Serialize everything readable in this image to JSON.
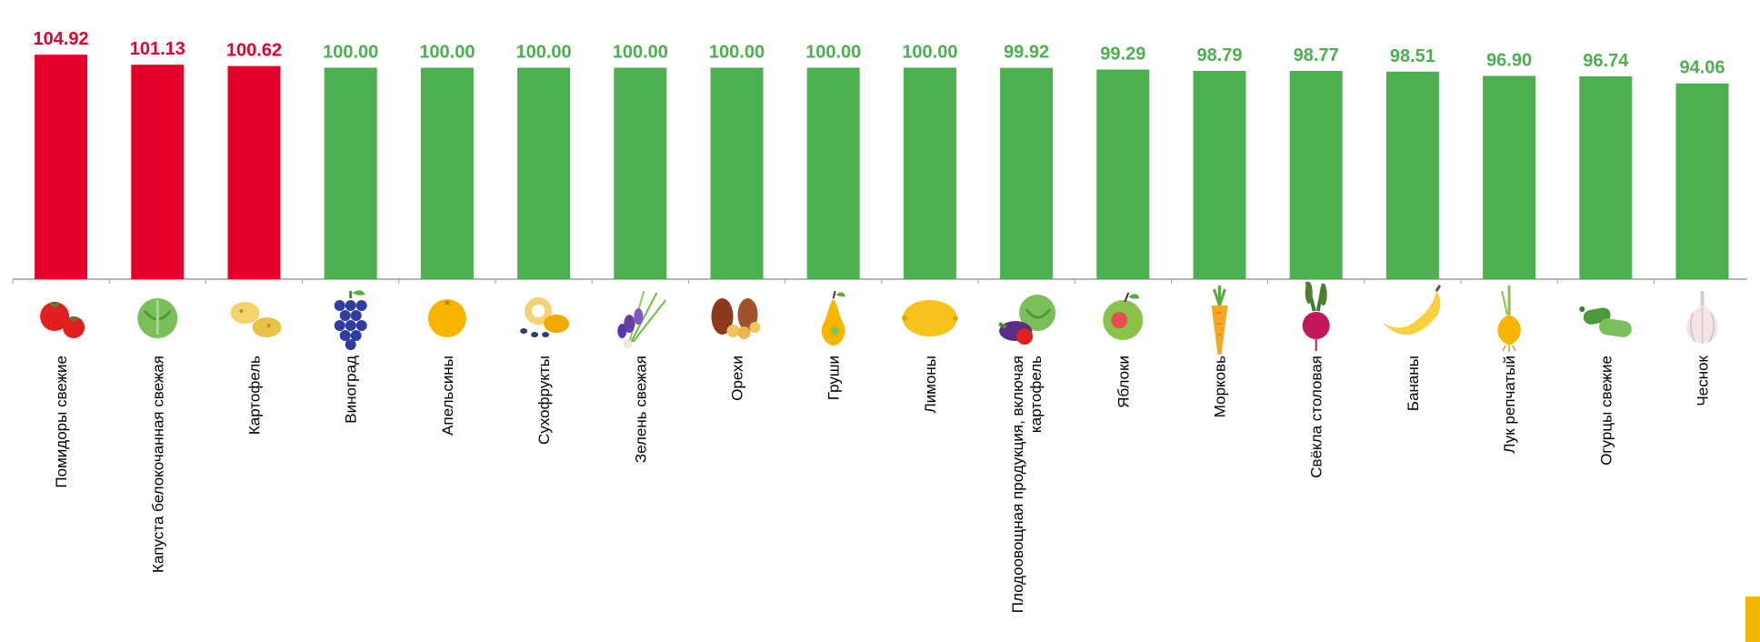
{
  "chart_data": {
    "type": "bar",
    "categories": [
      "Помидоры свежие",
      "Капуста белокочанная свежая",
      "Картофель",
      "Виноград",
      "Апельсины",
      "Сухофрукты",
      "Зелень свежая",
      "Орехи",
      "Груши",
      "Лимоны",
      "Плодоовощная продукция, включая картофель",
      "Яблоки",
      "Морковь",
      "Свёкла столовая",
      "Бананы",
      "Лук репчатый",
      "Огурцы свежие",
      "Чеснок"
    ],
    "values": [
      104.92,
      101.13,
      100.62,
      100.0,
      100.0,
      100.0,
      100.0,
      100.0,
      100.0,
      100.0,
      99.92,
      99.29,
      98.79,
      98.77,
      98.51,
      96.9,
      96.74,
      94.06
    ],
    "data_labels": [
      "104.92",
      "101.13",
      "100.62",
      "100.00",
      "100.00",
      "100.00",
      "100.00",
      "100.00",
      "100.00",
      "100.00",
      "99.92",
      "99.29",
      "98.79",
      "98.77",
      "98.51",
      "96.90",
      "96.74",
      "94.06"
    ],
    "icons": [
      "tomato-icon",
      "cabbage-icon",
      "potato-icon",
      "grape-icon",
      "orange-icon",
      "dried-fruit-icon",
      "greens-icon",
      "nuts-icon",
      "pear-icon",
      "lemon-icon",
      "vegetables-icon",
      "apple-icon",
      "carrot-icon",
      "beet-icon",
      "banana-icon",
      "onion-icon",
      "cucumber-icon",
      "garlic-icon"
    ],
    "colors": {
      "increase": "#E4002B",
      "decrease": "#4CAF50",
      "axis": "#9E9E9E"
    },
    "grid": false,
    "legend": "none"
  }
}
